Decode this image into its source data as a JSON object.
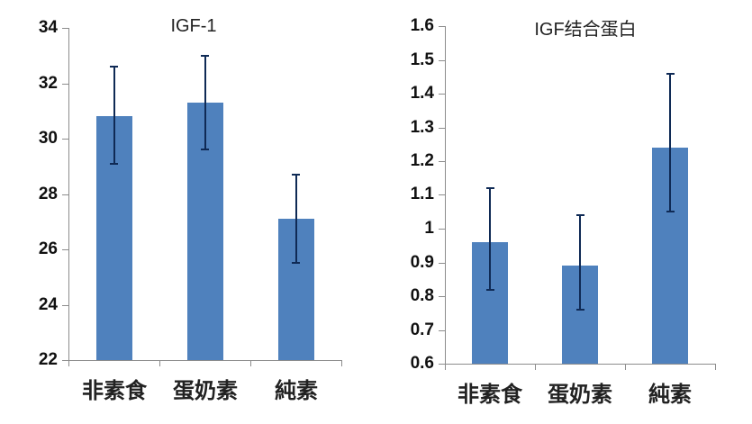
{
  "chart_data": [
    {
      "type": "bar",
      "title": "IGF-1",
      "categories": [
        "非素食",
        "蛋奶素",
        "純素"
      ],
      "values": [
        30.8,
        31.3,
        27.1
      ],
      "error_low": [
        29.1,
        29.6,
        25.5
      ],
      "error_high": [
        32.6,
        33.0,
        28.7
      ],
      "xlabel": "",
      "ylabel": "",
      "ylim": [
        22,
        34
      ],
      "yticks": [
        "22",
        "24",
        "26",
        "28",
        "30",
        "32",
        "34"
      ],
      "grid": false,
      "bar_color": "#4f81bd",
      "error_color": "#0f2a55"
    },
    {
      "type": "bar",
      "title": "IGF结合蛋白",
      "categories": [
        "非素食",
        "蛋奶素",
        "純素"
      ],
      "values": [
        0.96,
        0.89,
        1.24
      ],
      "error_low": [
        0.82,
        0.76,
        1.05
      ],
      "error_high": [
        1.12,
        1.04,
        1.46
      ],
      "xlabel": "",
      "ylabel": "",
      "ylim": [
        0.6,
        1.6
      ],
      "yticks": [
        "0.6",
        "0.7",
        "0.8",
        "0.9",
        "1",
        "1.1",
        "1.2",
        "1.3",
        "1.4",
        "1.5",
        "1.6"
      ],
      "grid": false,
      "bar_color": "#4f81bd",
      "error_color": "#0f2a55"
    }
  ]
}
